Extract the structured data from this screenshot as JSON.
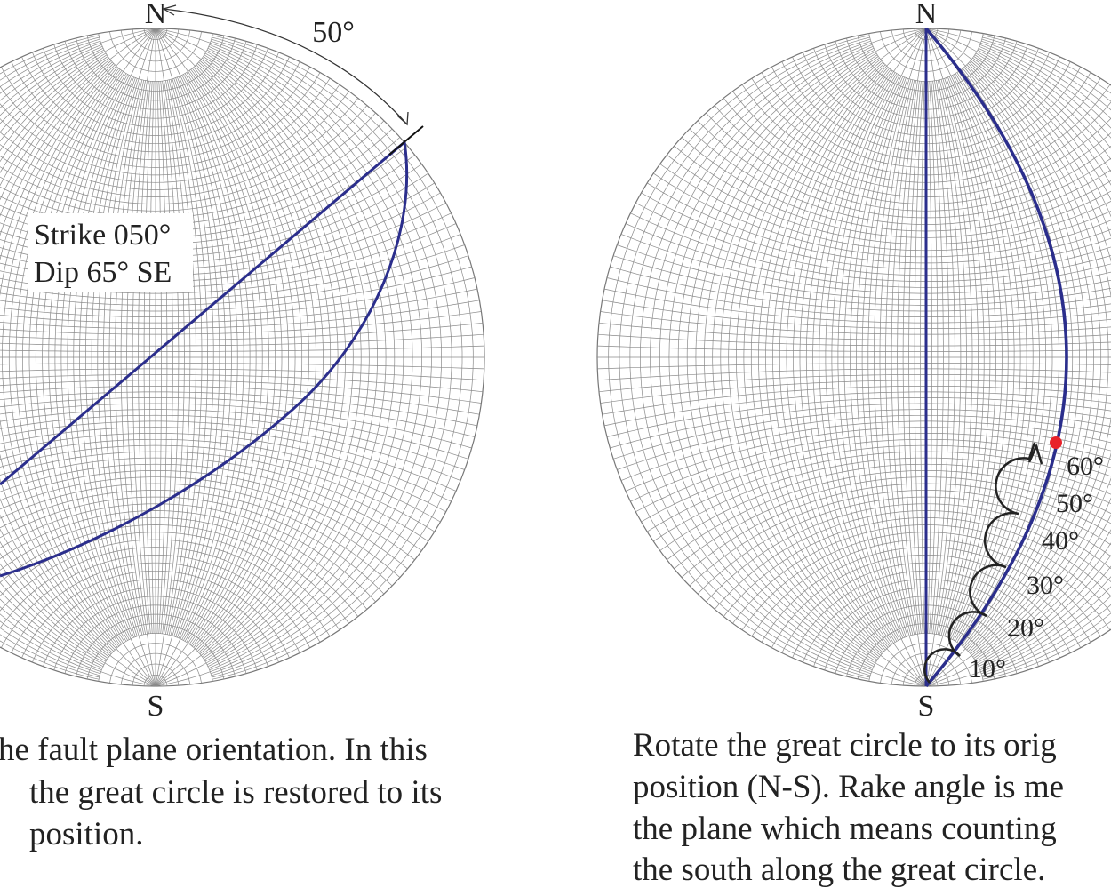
{
  "left": {
    "north": "N",
    "south": "S",
    "angle_label": "50°",
    "strike_label": "Strike  050°",
    "dip_label": "Dip 65° SE",
    "caption": [
      "he fault plane orientation. In this",
      "the great circle is restored to its",
      "position."
    ]
  },
  "right": {
    "north": "N",
    "south": "S",
    "rake_labels": [
      "10°",
      "20°",
      "30°",
      "40°",
      "50°",
      "60°"
    ],
    "caption": [
      "Rotate the great circle to its orig",
      "position (N-S). Rake angle is me",
      "the plane which means counting",
      "the south along the great circle."
    ]
  }
}
